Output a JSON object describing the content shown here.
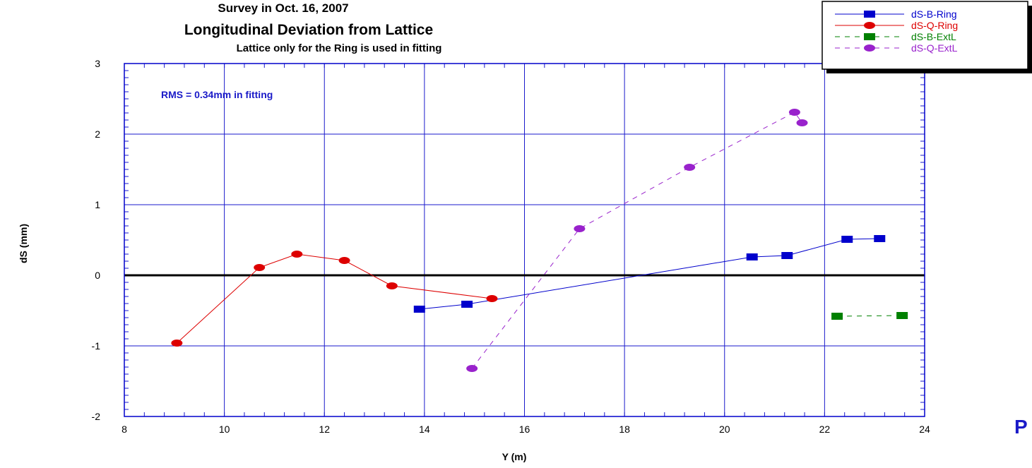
{
  "chart_data": {
    "type": "line",
    "title": "Survey in Oct. 16, 2007",
    "subtitle": "Longitudinal Deviation from Lattice",
    "subtitle2": "Lattice only for the Ring is used in fitting",
    "annotation": "RMS = 0.34mm in fitting",
    "corner_text": "P",
    "xlabel": "Y (m)",
    "ylabel": "dS (mm)",
    "xlim": [
      8,
      24
    ],
    "ylim": [
      -2,
      3
    ],
    "x_ticks": [
      8,
      10,
      12,
      14,
      16,
      18,
      20,
      22,
      24
    ],
    "y_ticks": [
      -2,
      -1,
      0,
      1,
      2,
      3
    ],
    "x_tick_labels": [
      "8",
      "10",
      "12",
      "14",
      "16",
      "18",
      "20",
      "22",
      "24"
    ],
    "y_tick_labels": [
      "-2",
      "-1",
      "0",
      "1",
      "2",
      "3"
    ],
    "grid": true,
    "zero_line": true,
    "legend_position": "top-right",
    "series": [
      {
        "name": "dS-B-Ring",
        "color": "#0000cc",
        "line": "solid",
        "marker": "square",
        "x": [
          13.9,
          14.85,
          20.55,
          21.25,
          22.45,
          23.1
        ],
        "y": [
          -0.48,
          -0.41,
          0.26,
          0.28,
          0.51,
          0.52
        ]
      },
      {
        "name": "dS-Q-Ring",
        "color": "#dd0000",
        "line": "solid",
        "marker": "circle",
        "x": [
          9.05,
          10.7,
          11.45,
          12.4,
          13.35,
          15.35
        ],
        "y": [
          -0.96,
          0.11,
          0.3,
          0.21,
          -0.15,
          -0.33
        ]
      },
      {
        "name": "dS-B-ExtL",
        "color": "#008000",
        "line": "dashed",
        "marker": "square",
        "x": [
          22.25,
          23.55
        ],
        "y": [
          -0.58,
          -0.57
        ]
      },
      {
        "name": "dS-Q-ExtL",
        "color": "#9922cc",
        "line": "dashed",
        "marker": "circle",
        "x": [
          14.95,
          17.1,
          19.3,
          21.4,
          21.55
        ],
        "y": [
          -1.32,
          0.66,
          1.53,
          2.31,
          2.16
        ]
      }
    ]
  }
}
